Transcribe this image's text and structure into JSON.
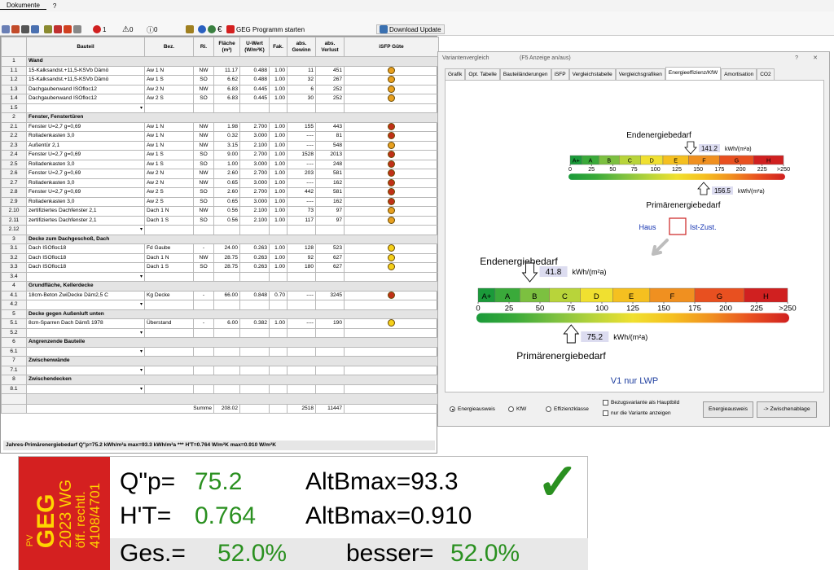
{
  "menu": {
    "doc": "Dokumente",
    "help": "?"
  },
  "toolbar": {
    "error_count": "1",
    "warn_count": "0",
    "info_count": "0",
    "geg_button": "GEG Programm starten",
    "download_button": "Download Update"
  },
  "table": {
    "headers": {
      "bauteil": "Bauteil",
      "bez": "Bez.",
      "ri": "Ri.",
      "flaeche": "Fläche (m²)",
      "uwert": "U-Wert (W/m²K)",
      "fak": "Fak.",
      "gewinn": "abs. Gewinn",
      "verlust": "abs. Verlust",
      "isfp": "iSFP Güte"
    },
    "rows": [
      {
        "type": "sec",
        "n": "1",
        "name": "Wand"
      },
      {
        "n": "1.1",
        "d": true,
        "name": "15-Kalksandst.+11,5-KSVb Dämö",
        "bez": "Aw 1 N",
        "ri": "NW",
        "fl": "11.17",
        "u": "0.488",
        "fak": "1.00",
        "g": "11",
        "v": "451",
        "face": "o"
      },
      {
        "n": "1.2",
        "d": true,
        "name": "15-Kalksandst.+11,5-KSVb Dämö",
        "bez": "Aw 1 S",
        "ri": "SO",
        "fl": "6.62",
        "u": "0.488",
        "fak": "1.00",
        "g": "32",
        "v": "267",
        "face": "o"
      },
      {
        "n": "1.3",
        "d": true,
        "name": "Dachgaubenwand ISOfloc12",
        "bez": "Aw 2 N",
        "ri": "NW",
        "fl": "6.83",
        "u": "0.445",
        "fak": "1.00",
        "g": "6",
        "v": "252",
        "face": "o"
      },
      {
        "n": "1.4",
        "d": true,
        "name": "Dachgaubenwand ISOfloc12",
        "bez": "Aw 2 S",
        "ri": "SO",
        "fl": "6.83",
        "u": "0.445",
        "fak": "1.00",
        "g": "30",
        "v": "252",
        "face": "o"
      },
      {
        "n": "1.5",
        "empty": true
      },
      {
        "type": "sec",
        "n": "2",
        "name": "Fenster, Fenstertüren"
      },
      {
        "n": "2.1",
        "d": true,
        "name": "Fenster U=2,7 g=0,69",
        "bez": "Aw 1 N",
        "ri": "NW",
        "fl": "1.98",
        "u": "2.700",
        "fak": "1.00",
        "g": "155",
        "v": "443",
        "face": "r"
      },
      {
        "n": "2.2",
        "d": true,
        "name": "Rolladenkasten 3,0",
        "bez": "Aw 1 N",
        "ri": "NW",
        "fl": "0.32",
        "u": "3.000",
        "fak": "1.00",
        "g": "----",
        "v": "81",
        "face": "r"
      },
      {
        "n": "2.3",
        "d": true,
        "name": "Außentür 2,1",
        "bez": "Aw 1 N",
        "ri": "NW",
        "fl": "3.15",
        "u": "2.100",
        "fak": "1.00",
        "g": "----",
        "v": "548",
        "face": "o"
      },
      {
        "n": "2.4",
        "d": true,
        "name": "Fenster U=2,7 g=0,69",
        "bez": "Aw 1 S",
        "ri": "SO",
        "fl": "9.00",
        "u": "2.700",
        "fak": "1.00",
        "g": "1528",
        "v": "2013",
        "face": "r"
      },
      {
        "n": "2.5",
        "d": true,
        "name": "Rolladenkasten 3,0",
        "bez": "Aw 1 S",
        "ri": "SO",
        "fl": "1.00",
        "u": "3.000",
        "fak": "1.00",
        "g": "----",
        "v": "248",
        "face": "r"
      },
      {
        "n": "2.6",
        "d": true,
        "name": "Fenster U=2,7 g=0,69",
        "bez": "Aw 2 N",
        "ri": "NW",
        "fl": "2.60",
        "u": "2.700",
        "fak": "1.00",
        "g": "203",
        "v": "581",
        "face": "r"
      },
      {
        "n": "2.7",
        "d": true,
        "name": "Rolladenkasten 3,0",
        "bez": "Aw 2 N",
        "ri": "NW",
        "fl": "0.65",
        "u": "3.000",
        "fak": "1.00",
        "g": "----",
        "v": "162",
        "face": "r"
      },
      {
        "n": "2.8",
        "d": true,
        "name": "Fenster U=2,7 g=0,69",
        "bez": "Aw 2 S",
        "ri": "SO",
        "fl": "2.60",
        "u": "2.700",
        "fak": "1.00",
        "g": "442",
        "v": "581",
        "face": "r"
      },
      {
        "n": "2.9",
        "d": true,
        "name": "Rolladenkasten 3,0",
        "bez": "Aw 2 S",
        "ri": "SO",
        "fl": "0.65",
        "u": "3.000",
        "fak": "1.00",
        "g": "----",
        "v": "162",
        "face": "r"
      },
      {
        "n": "2.10",
        "d": true,
        "name": "zertifiziertes Dachfenster 2,1",
        "bez": "Dach 1 N",
        "ri": "NW",
        "fl": "0.56",
        "u": "2.100",
        "fak": "1.00",
        "g": "73",
        "v": "97",
        "face": "o"
      },
      {
        "n": "2.11",
        "d": true,
        "name": "zertifiziertes Dachfenster 2,1",
        "bez": "Dach 1 S",
        "ri": "SO",
        "fl": "0.56",
        "u": "2.100",
        "fak": "1.00",
        "g": "117",
        "v": "97",
        "face": "o"
      },
      {
        "n": "2.12",
        "empty": true
      },
      {
        "type": "sec",
        "n": "3",
        "name": "Decke zum Dachgeschoß, Dach"
      },
      {
        "n": "3.1",
        "d": true,
        "name": "Dach ISOfloc18",
        "bez": "Fd Gaube",
        "ri": "-",
        "fl": "24.00",
        "u": "0.263",
        "fak": "1.00",
        "g": "128",
        "v": "523",
        "face": "y"
      },
      {
        "n": "3.2",
        "d": true,
        "name": "Dach ISOfloc18",
        "bez": "Dach 1 N",
        "ri": "NW",
        "fl": "28.75",
        "u": "0.263",
        "fak": "1.00",
        "g": "92",
        "v": "627",
        "face": "y"
      },
      {
        "n": "3.3",
        "d": true,
        "name": "Dach ISOfloc18",
        "bez": "Dach 1 S",
        "ri": "SO",
        "fl": "28.75",
        "u": "0.263",
        "fak": "1.00",
        "g": "180",
        "v": "627",
        "face": "y"
      },
      {
        "n": "3.4",
        "empty": true
      },
      {
        "type": "sec",
        "n": "4",
        "name": "Grundfläche, Kellerdecke"
      },
      {
        "n": "4.1",
        "d": true,
        "name": "18cm-Beton ZwiDecke Däm2,5 C",
        "bez": "Kg Decke",
        "ri": "-",
        "fl": "66.00",
        "u": "0.848",
        "fak": "0.70",
        "g": "----",
        "v": "3245",
        "face": "r"
      },
      {
        "n": "4.2",
        "empty": true
      },
      {
        "type": "sec",
        "n": "5",
        "name": "Decke gegen Außenluft unten"
      },
      {
        "n": "5.1",
        "d": true,
        "name": "8cm-Sparren Dach Dämß 1978",
        "bez": "Überstand",
        "ri": "-",
        "fl": "6.00",
        "u": "0.382",
        "fak": "1.00",
        "g": "----",
        "v": "190",
        "face": "y"
      },
      {
        "n": "5.2",
        "empty": true
      },
      {
        "type": "sec",
        "n": "6",
        "name": "Angrenzende Bauteile"
      },
      {
        "n": "6.1",
        "empty": true
      },
      {
        "type": "sec",
        "n": "7",
        "name": "Zwischenwände"
      },
      {
        "n": "7.1",
        "empty": true
      },
      {
        "type": "sec",
        "n": "8",
        "name": "Zwischendecken"
      },
      {
        "n": "8.1",
        "empty": true
      },
      {
        "type": "gray"
      }
    ],
    "summe": {
      "label": "Summe",
      "fl": "208.02",
      "g": "2518",
      "v": "11447"
    },
    "footer": "Jahres-Primärenergiebedarf Q\"p=75.2 kWh/m²a max=93.3 kWh/m²a *** H'T=0.764 W/m²K max=0.910 W/m²K"
  },
  "dialog": {
    "title": "Variantenvergleich",
    "hint": "(F5 Anzeige an/aus)",
    "q": "?",
    "x": "✕",
    "tabs": [
      "Grafik",
      "Opt. Tabelle",
      "Bauteiländerungen",
      "iSFP",
      "Vergleichstabelle",
      "Vergleichsgrafiken",
      "Energieeffizienz/KfW",
      "Amortisation",
      "CO2"
    ],
    "active_tab": 6,
    "scale_labels": [
      "A+",
      "A",
      "B",
      "C",
      "D",
      "E",
      "F",
      "G",
      "H"
    ],
    "ticks": [
      "0",
      "25",
      "50",
      "75",
      "100",
      "125",
      "150",
      "175",
      "200",
      "225",
      ">250"
    ],
    "ist": {
      "endenergie_label": "Endenergiebedarf",
      "endenergie": 141.2,
      "endenergie_text": "141.2",
      "primaer_label": "Primärenergiebedarf",
      "primaer": 156.5,
      "primaer_text": "156.5",
      "class": "E",
      "unit": "kWh/(m²a)",
      "haus": "Haus",
      "istzust": "Ist-Zust."
    },
    "var": {
      "endenergie_label": "Endenergiebedarf",
      "endenergie": 41.8,
      "endenergie_text": "41.8",
      "primaer_label": "Primärenergiebedarf",
      "primaer": 75.2,
      "primaer_text": "75.2",
      "class": "A",
      "unit": "kWh/(m²a)",
      "name": "V1 nur LWP"
    },
    "radios": [
      "Energieausweis",
      "KfW",
      "Effizienzklasse"
    ],
    "selected_radio": 0,
    "checkboxes": [
      "Bezugsvariante als Hauptbild",
      "nur die Variante anzeigen"
    ],
    "btn_energie": "Energieausweis",
    "btn_clip": "-> Zwischenablage",
    "colors": {
      "ist_box": "#cc2020",
      "var_name": "#2040a0",
      "haus": "#1030b0"
    }
  },
  "geg": {
    "badge": {
      "pv": "PV",
      "geg": "GEG",
      "year": "2023 WG",
      "recht": "öff. rechtl.",
      "num": "4108/4701"
    },
    "qp_label": "Q\"p=",
    "qp": "75.2",
    "alt1": "AltBmax=93.3",
    "ht_label": "H'T=",
    "ht": "0.764",
    "alt2": "AltBmax=0.910",
    "ges_label": "Ges.=",
    "ges": "52.0%",
    "bes_label": "besser=",
    "bes": "52.0%",
    "check": "✓"
  }
}
